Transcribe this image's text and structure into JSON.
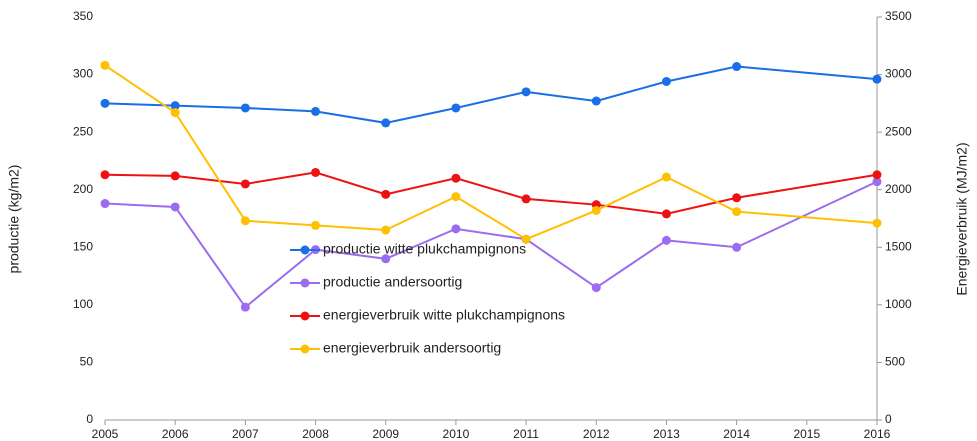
{
  "chart_data": {
    "type": "line",
    "y_label": "productie (kg/m2)",
    "y2_label": "Energieverbruik (MJ/m2)",
    "x": [
      2005,
      2006,
      2007,
      2008,
      2009,
      2010,
      2011,
      2012,
      2013,
      2014,
      2016
    ],
    "xlim": [
      2005,
      2016
    ],
    "xticks": [
      2005,
      2006,
      2007,
      2008,
      2009,
      2010,
      2011,
      2012,
      2013,
      2014,
      2015,
      2016
    ],
    "ylim": [
      0,
      350
    ],
    "yticks": [
      0,
      50,
      100,
      150,
      200,
      250,
      300,
      350
    ],
    "y2lim": [
      0,
      3500
    ],
    "y2ticks": [
      0,
      500,
      1000,
      1500,
      2000,
      2500,
      3000,
      3500
    ],
    "grid": false,
    "legend": "center",
    "series": [
      {
        "name": "productie witte plukchampignons",
        "color": "#1a6ee6",
        "values": [
          275,
          273,
          271,
          268,
          258,
          271,
          285,
          277,
          294,
          307,
          296
        ]
      },
      {
        "name": "productie andersoortig",
        "color": "#9b6cf0",
        "values": [
          188,
          185,
          98,
          148,
          140,
          166,
          157,
          115,
          156,
          150,
          207
        ]
      },
      {
        "name": "energieverbruik witte plukchampignons",
        "color": "#ee1111",
        "axis": "y2",
        "values": [
          2130,
          2120,
          2050,
          2150,
          1960,
          2100,
          1920,
          1870,
          1790,
          1930,
          2130
        ]
      },
      {
        "name": "energieverbruik andersoortig",
        "color": "#ffc000",
        "axis": "y2",
        "values": [
          3080,
          2670,
          1730,
          1690,
          1650,
          1940,
          1570,
          1820,
          2110,
          1810,
          1710
        ]
      }
    ]
  }
}
